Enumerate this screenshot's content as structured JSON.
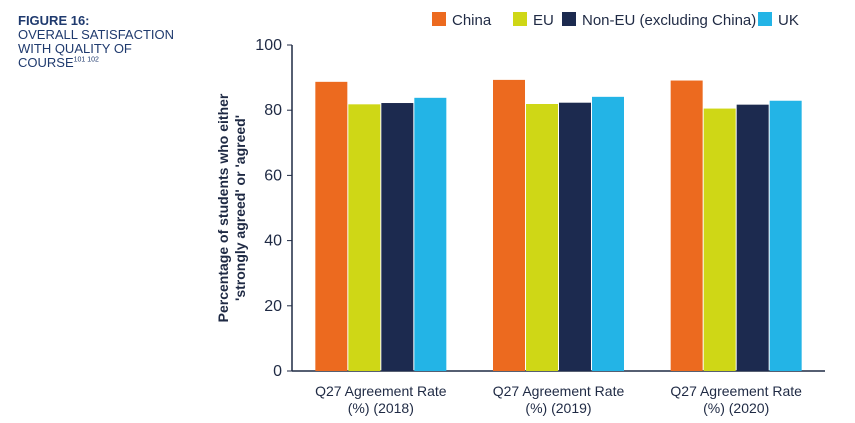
{
  "caption": {
    "label": "FIGURE 16:",
    "lines": [
      "OVERALL SATISFACTION",
      "WITH QUALITY OF",
      "COURSE"
    ],
    "footnotes": "101 102"
  },
  "chart_data": {
    "type": "bar",
    "categories": [
      [
        "Q27 Agreement Rate",
        "(%) (2018)"
      ],
      [
        "Q27 Agreement Rate",
        "(%) (2019)"
      ],
      [
        "Q27 Agreement Rate",
        "(%) (2020)"
      ]
    ],
    "series": [
      {
        "name": "China",
        "color": "#ec6a1f",
        "values": [
          88.7,
          89.3,
          89.1
        ]
      },
      {
        "name": "EU",
        "color": "#cfd716",
        "values": [
          81.8,
          81.9,
          80.5
        ]
      },
      {
        "name": "Non-EU (excluding China)",
        "color": "#1c2a4f",
        "values": [
          82.2,
          82.3,
          81.7
        ]
      },
      {
        "name": "UK",
        "color": "#23b4e6",
        "values": [
          83.8,
          84.1,
          82.9
        ]
      }
    ],
    "ylabel": [
      "Percentage of students who either",
      "'strongly agreed' or 'agreed'"
    ],
    "ylim": [
      0,
      100
    ],
    "yticks": [
      0,
      20,
      40,
      60,
      80,
      100
    ],
    "grid": false,
    "legend_position": "top"
  }
}
